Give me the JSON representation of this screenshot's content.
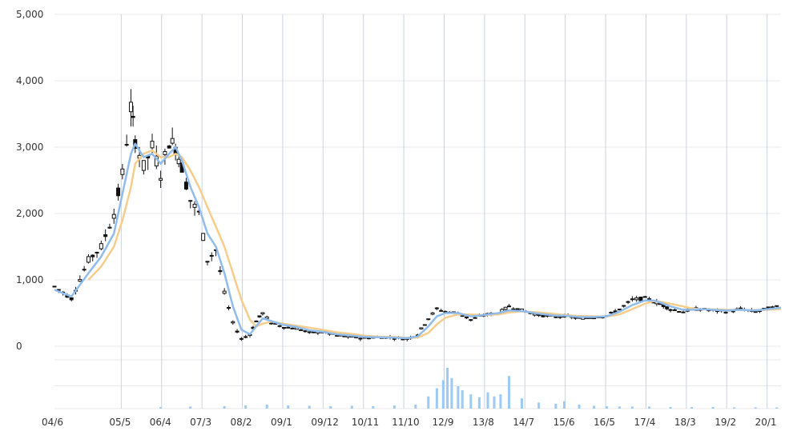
{
  "chart_data": {
    "type": "candlestick",
    "y_axis": {
      "ticks": [
        "5,000",
        "4,000",
        "3,000",
        "2,000",
        "1,000",
        "0"
      ],
      "tick_values": [
        5000,
        4000,
        3000,
        2000,
        1000,
        0
      ],
      "range": [
        0,
        5000
      ]
    },
    "x_axis": {
      "labels": [
        "04/6",
        "05/5",
        "06/4",
        "07/3",
        "08/2",
        "09/1",
        "09/12",
        "10/11",
        "11/10",
        "12/9",
        "13/8",
        "14/7",
        "15/6",
        "16/5",
        "17/4",
        "18/3",
        "19/2",
        "20/1"
      ],
      "label_positions": [
        0,
        0.95,
        1.9,
        2.85,
        3.8,
        4.75,
        5.7,
        6.65,
        7.6,
        8.55,
        9.5,
        10.45,
        11.4,
        12.35,
        13.3,
        14.25,
        15.2,
        16.15
      ],
      "range": [
        0,
        17.1
      ]
    },
    "price_series": {
      "x": [
        0,
        0.4,
        0.8,
        1.1,
        1.4,
        1.6,
        1.8,
        1.9,
        2.1,
        2.3,
        2.5,
        2.7,
        2.85,
        3.0,
        3.2,
        3.4,
        3.6,
        3.8,
        4.0,
        4.2,
        4.4,
        4.6,
        4.75,
        4.9,
        5.1,
        5.4,
        5.7,
        6.0,
        6.3,
        6.65,
        7.0,
        7.3,
        7.6,
        8.0,
        8.3,
        8.55,
        8.8,
        9.0,
        9.2,
        9.5,
        9.8,
        10.1,
        10.45,
        10.7,
        11.0,
        11.4,
        11.8,
        12.0,
        12.35,
        12.7,
        13.0,
        13.3,
        13.6,
        13.9,
        14.1,
        14.25,
        14.5,
        14.8,
        15.0,
        15.2,
        15.5,
        15.8,
        16.15,
        16.5,
        16.8,
        17.1
      ],
      "close": [
        900,
        720,
        1300,
        1500,
        2000,
        2600,
        3600,
        3100,
        2700,
        3000,
        2600,
        3100,
        3000,
        2700,
        2200,
        2000,
        1300,
        1450,
        800,
        350,
        110,
        180,
        380,
        500,
        350,
        290,
        270,
        200,
        220,
        160,
        140,
        120,
        140,
        130,
        110,
        180,
        420,
        560,
        520,
        500,
        400,
        470,
        500,
        600,
        540,
        470,
        440,
        460,
        420,
        440,
        460,
        560,
        700,
        720,
        680,
        640,
        560,
        520,
        560,
        560,
        540,
        520,
        560,
        520,
        570,
        600
      ],
      "ma_short": [
        850,
        750,
        1100,
        1350,
        1700,
        2300,
        2900,
        3050,
        2850,
        2900,
        2750,
        2900,
        3000,
        2800,
        2400,
        2100,
        1700,
        1500,
        1100,
        600,
        250,
        180,
        300,
        420,
        380,
        320,
        290,
        240,
        220,
        180,
        160,
        140,
        135,
        130,
        120,
        150,
        300,
        450,
        500,
        500,
        450,
        470,
        500,
        540,
        530,
        490,
        460,
        460,
        440,
        440,
        450,
        520,
        620,
        690,
        690,
        660,
        600,
        550,
        550,
        560,
        550,
        540,
        550,
        540,
        560,
        580
      ],
      "ma_long": [
        null,
        null,
        1000,
        1200,
        1500,
        1900,
        2400,
        2750,
        2900,
        2950,
        2850,
        2850,
        2900,
        2850,
        2650,
        2400,
        2100,
        1800,
        1500,
        1100,
        700,
        400,
        300,
        340,
        370,
        340,
        310,
        280,
        250,
        210,
        185,
        160,
        145,
        138,
        128,
        130,
        200,
        330,
        430,
        480,
        480,
        470,
        480,
        510,
        525,
        510,
        485,
        470,
        455,
        450,
        448,
        480,
        560,
        640,
        680,
        670,
        640,
        600,
        570,
        560,
        555,
        550,
        545,
        545,
        550,
        560
      ]
    },
    "volume_series": {
      "x": [
        2.5,
        3.2,
        4.0,
        4.5,
        5.0,
        5.5,
        6.0,
        6.5,
        7.0,
        7.5,
        8.0,
        8.5,
        8.8,
        9.0,
        9.15,
        9.25,
        9.35,
        9.5,
        9.6,
        9.8,
        10.0,
        10.2,
        10.35,
        10.5,
        10.7,
        11.0,
        11.4,
        11.8,
        12.0,
        12.35,
        12.7,
        13.0,
        13.3,
        13.6,
        14.0,
        14.5,
        15.0,
        15.5,
        16.0,
        16.5,
        17.0
      ],
      "values": [
        0.04,
        0.05,
        0.06,
        0.08,
        0.1,
        0.08,
        0.07,
        0.06,
        0.07,
        0.06,
        0.08,
        0.1,
        0.3,
        0.5,
        0.7,
        1.0,
        0.75,
        0.55,
        0.45,
        0.35,
        0.28,
        0.4,
        0.3,
        0.35,
        0.8,
        0.25,
        0.15,
        0.12,
        0.18,
        0.1,
        0.07,
        0.06,
        0.05,
        0.05,
        0.05,
        0.04,
        0.04,
        0.04,
        0.03,
        0.03,
        0.03
      ]
    },
    "colors": {
      "candle": "#111111",
      "ma_short": "#8fbcec",
      "ma_long": "#f6cd8a",
      "volume": "#9ccaf2"
    },
    "grid": true
  }
}
